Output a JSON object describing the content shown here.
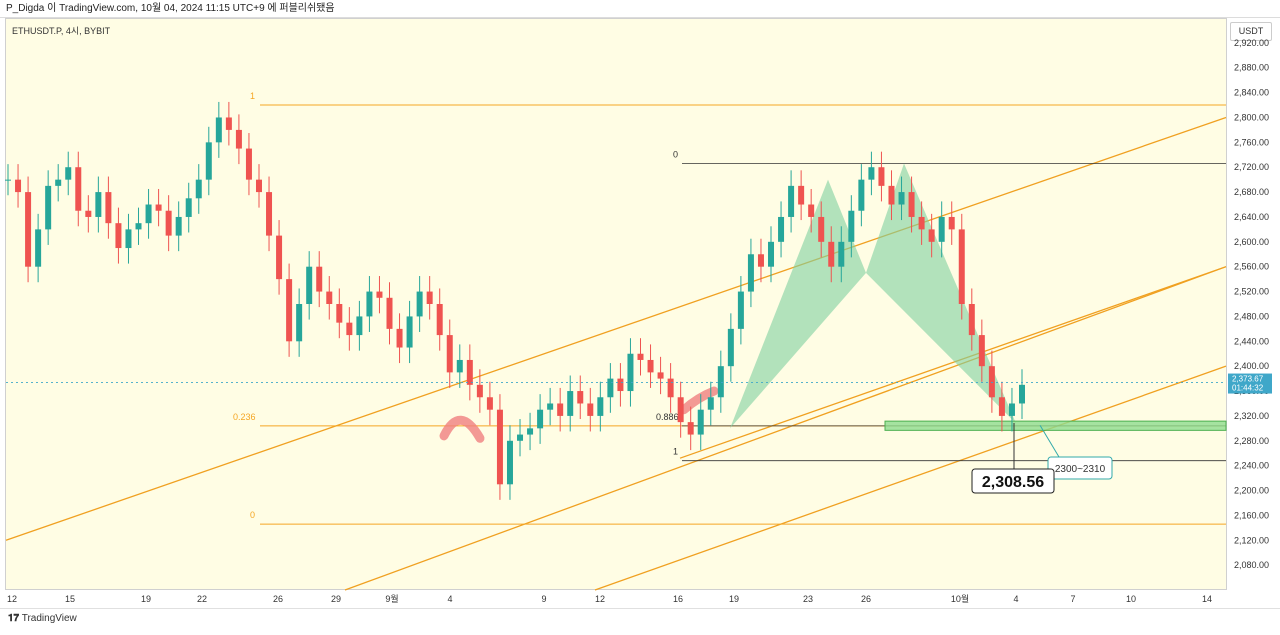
{
  "header": {
    "text": "P_Digda 이 TradingView.com, 10월 04, 2024 11:15 UTC+9 에 퍼블리쉬됐음"
  },
  "symbol": {
    "text": "ETHUSDT.P, 4시, BYBIT"
  },
  "y_unit": "USDT",
  "footer": {
    "brand": "TradingView"
  },
  "colors": {
    "up": "#26a69a",
    "down": "#ef5350",
    "fib": "#f5a623",
    "pattern": "#7fd1a0",
    "channel": "#f0a020",
    "price_tag": "#3fa7c9"
  },
  "chart_data": {
    "type": "line",
    "title": "",
    "ylabel": "USDT",
    "ylim": [
      2040,
      2960
    ],
    "yticks": [
      2080,
      2120,
      2160,
      2200,
      2240,
      2280,
      2320,
      2360,
      2400,
      2440,
      2480,
      2520,
      2560,
      2600,
      2640,
      2680,
      2720,
      2760,
      2800,
      2840,
      2880,
      2920
    ],
    "ytick_labels": [
      "2,080.00",
      "2,120.00",
      "2,160.00",
      "2,200.00",
      "2,240.00",
      "2,280.00",
      "2,320.00",
      "2,360.00",
      "2,400.00",
      "2,440.00",
      "2,480.00",
      "2,520.00",
      "2,560.00",
      "2,600.00",
      "2,640.00",
      "2,680.00",
      "2,720.00",
      "2,760.00",
      "2,800.00",
      "2,840.00",
      "2,880.00",
      "2,920.00"
    ],
    "xticks": [
      "12",
      "15",
      "19",
      "22",
      "26",
      "29",
      "9월",
      "4",
      "9",
      "12",
      "16",
      "19",
      "23",
      "26",
      "10월",
      "4",
      "7",
      "10",
      "14"
    ],
    "series": [
      {
        "values": [
          2700,
          2680,
          2560,
          2620,
          2690,
          2700,
          2720,
          2650,
          2640,
          2680,
          2630,
          2590,
          2620,
          2630,
          2660,
          2650,
          2610,
          2640,
          2670,
          2700,
          2760,
          2800,
          2780,
          2750,
          2700,
          2680,
          2610,
          2540,
          2440,
          2500,
          2560,
          2520,
          2500,
          2470,
          2450,
          2480,
          2520,
          2510,
          2460,
          2430,
          2480,
          2520,
          2500,
          2450,
          2390,
          2410,
          2370,
          2350,
          2330,
          2210,
          2280,
          2290,
          2300,
          2330,
          2340,
          2320,
          2360,
          2340,
          2320,
          2350,
          2380,
          2360,
          2420,
          2410,
          2390,
          2380,
          2350,
          2310,
          2290,
          2330,
          2350,
          2400,
          2460,
          2520,
          2580,
          2560,
          2600,
          2640,
          2690,
          2660,
          2640,
          2600,
          2560,
          2600,
          2650,
          2700,
          2720,
          2690,
          2660,
          2680,
          2640,
          2620,
          2600,
          2640,
          2620,
          2500,
          2450,
          2400,
          2350,
          2320,
          2340,
          2370
        ]
      }
    ],
    "last_price": {
      "value": "2,373.67",
      "countdown": "01:44:32"
    },
    "fib_levels_left": [
      {
        "label": "1",
        "value": 2820
      },
      {
        "label": "0.236",
        "value": 2304
      },
      {
        "label": "0",
        "value": 2146
      }
    ],
    "fib_levels_right": [
      {
        "label": "0",
        "value": 2726
      },
      {
        "label": "0.886",
        "value": 2304
      },
      {
        "label": "1",
        "value": 2248
      }
    ],
    "zone": {
      "label": "2300~2310",
      "low": 2300,
      "high": 2310
    },
    "price_callout": {
      "label": "2,308.56",
      "value": 2308.56
    }
  }
}
